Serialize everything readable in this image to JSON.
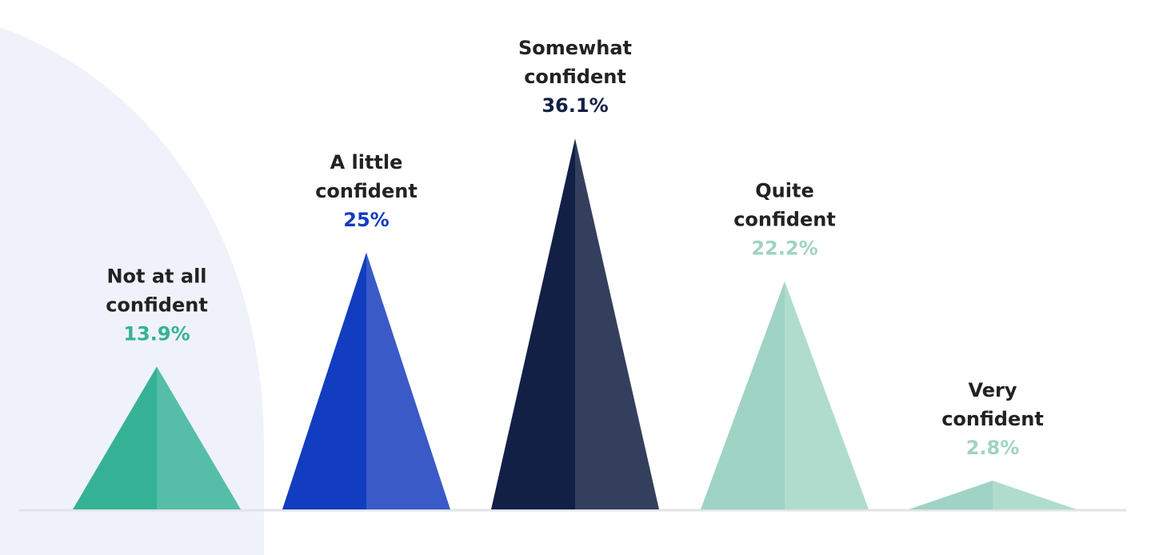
{
  "chart_data": {
    "type": "bar",
    "categories": [
      "Not at all confident",
      "A little confident",
      "Somewhat confident",
      "Quite confident",
      "Very confident"
    ],
    "category_lines": [
      [
        "Not at all",
        "confident"
      ],
      [
        "A little",
        "confident"
      ],
      [
        "Somewhat",
        "confident"
      ],
      [
        "Quite",
        "confident"
      ],
      [
        "Very",
        "confident"
      ]
    ],
    "values": [
      13.9,
      25,
      36.1,
      22.2,
      2.8
    ],
    "value_labels": [
      "13.9%",
      "25%",
      "36.1%",
      "22.2%",
      "2.8%"
    ],
    "colors": [
      {
        "left": "#35b296",
        "right": "#56bea8",
        "label": "#35b296"
      },
      {
        "left": "#123dc0",
        "right": "#3a5ac8",
        "label": "#123dc0"
      },
      {
        "left": "#132045",
        "right": "#343f5d",
        "label": "#132045"
      },
      {
        "left": "#9fd3c3",
        "right": "#b0dcce",
        "label": "#9fd3c3"
      },
      {
        "left": "#9fd3c3",
        "right": "#b0dcce",
        "label": "#9fd3c3"
      }
    ],
    "mark_shape": "triangle",
    "baseline_color": "#e2e3e7",
    "background_shape_color": "#eff2fa",
    "grid": false,
    "legend": "none",
    "title": "",
    "xlabel": "",
    "ylabel": ""
  }
}
